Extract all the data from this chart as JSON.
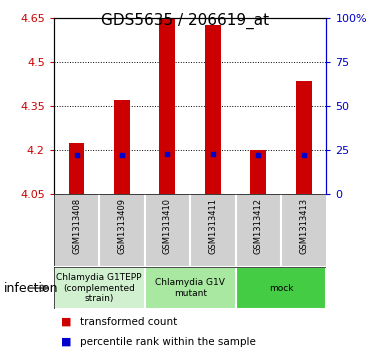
{
  "title": "GDS5635 / 206619_at",
  "samples": [
    "GSM1313408",
    "GSM1313409",
    "GSM1313410",
    "GSM1313411",
    "GSM1313412",
    "GSM1313413"
  ],
  "bar_bottom": 4.05,
  "bar_tops": [
    4.225,
    4.37,
    4.65,
    4.625,
    4.2,
    4.435
  ],
  "blue_positions": [
    4.183,
    4.183,
    4.188,
    4.188,
    4.182,
    4.185
  ],
  "bar_color": "#cc0000",
  "blue_color": "#0000cc",
  "ylim_min": 4.05,
  "ylim_max": 4.65,
  "yticks_left": [
    4.05,
    4.2,
    4.35,
    4.5,
    4.65
  ],
  "ytick_labels_left": [
    "4.05",
    "4.2",
    "4.35",
    "4.5",
    "4.65"
  ],
  "yticks_right_pct": [
    0,
    25,
    50,
    75,
    100
  ],
  "ytick_labels_right": [
    "0",
    "25",
    "50",
    "75",
    "100%"
  ],
  "left_tick_color": "#cc0000",
  "right_tick_color": "#0000cc",
  "groups": [
    {
      "label": "Chlamydia G1TEPP\n(complemented\nstrain)",
      "indices": [
        0,
        1
      ],
      "color": "#d0f0d0"
    },
    {
      "label": "Chlamydia G1V\nmutant",
      "indices": [
        2,
        3
      ],
      "color": "#a8e8a0"
    },
    {
      "label": "mock",
      "indices": [
        4,
        5
      ],
      "color": "#44cc44"
    }
  ],
  "factor_label": "infection",
  "bar_width": 0.35,
  "sample_bg_color": "#d0d0d0",
  "legend_red_label": "transformed count",
  "legend_blue_label": "percentile rank within the sample",
  "title_fontsize": 11
}
